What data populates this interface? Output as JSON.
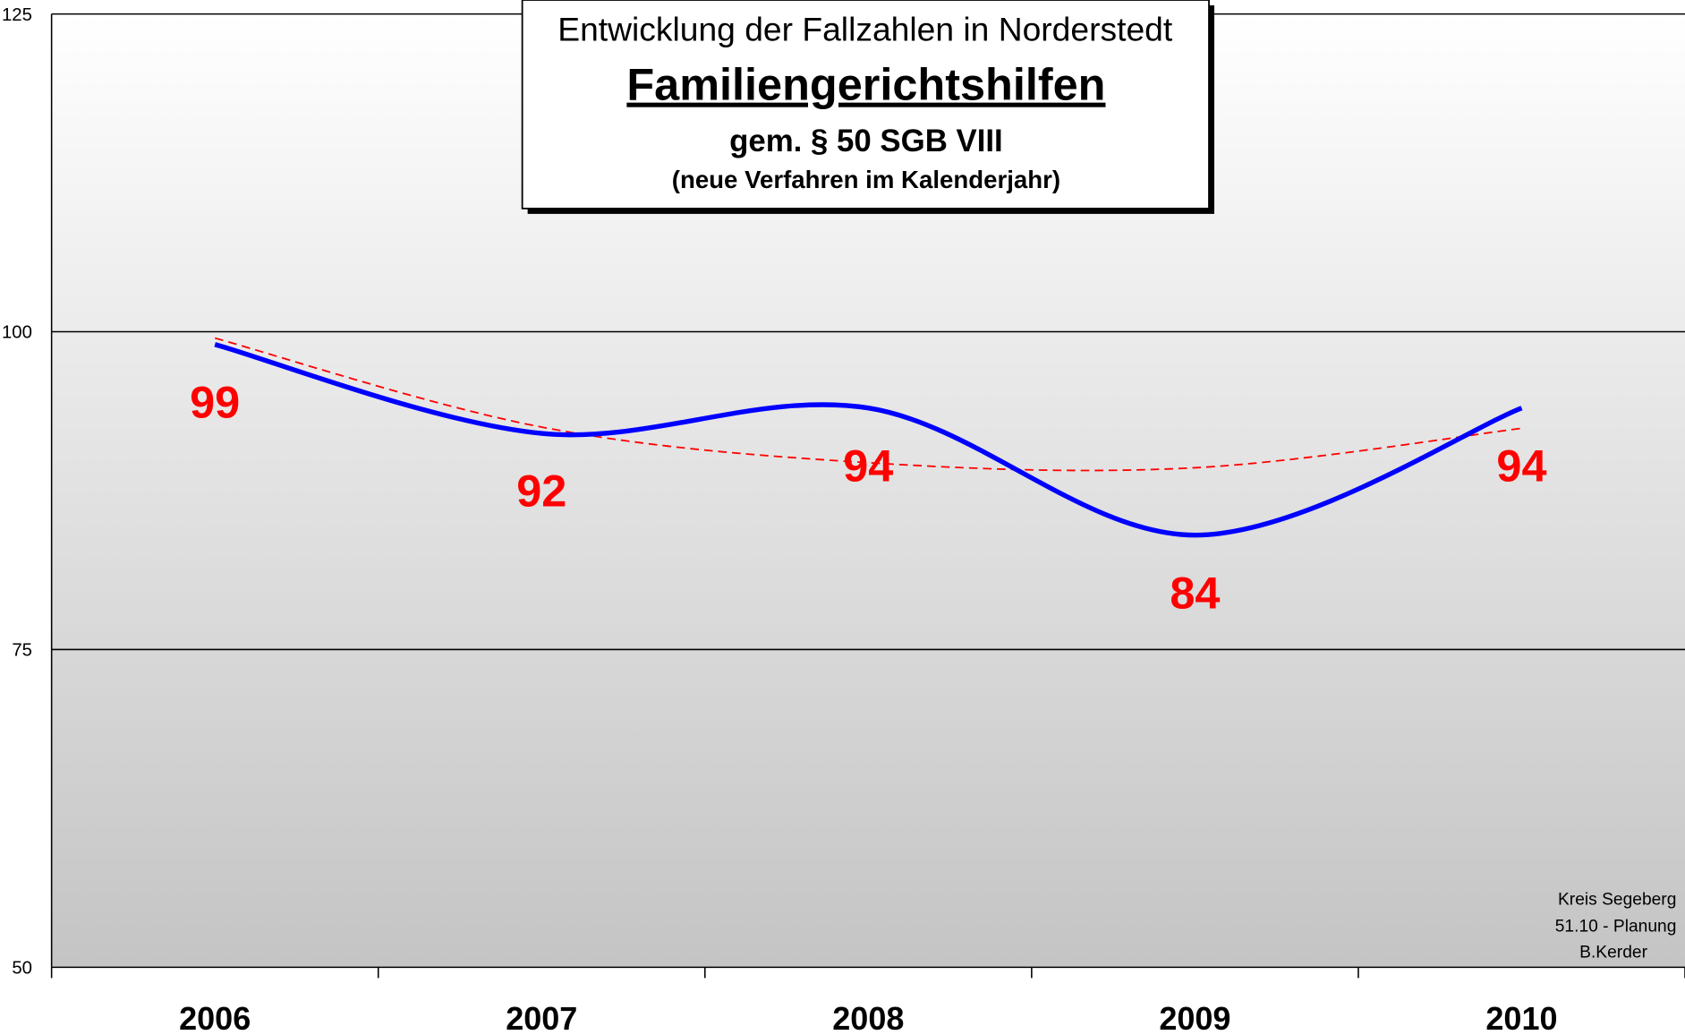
{
  "chart_data": {
    "type": "line",
    "title": "Entwicklung der Fallzahlen in Norderstedt",
    "subtitle": "Familiengerichtshilfen",
    "subtitle_2": "gem. § 50 SGB VIII",
    "subtitle_3": "(neue Verfahren im Kalenderjahr)",
    "annotation": [
      "Kreis Segeberg",
      "51.10 - Planung",
      "B.Kerder"
    ],
    "categories": [
      "2006",
      "2007",
      "2008",
      "2009",
      "2010"
    ],
    "series": [
      {
        "color": "#0000ff",
        "values": [
          99,
          92,
          94,
          84,
          94
        ],
        "smooth": true,
        "data_labels": true,
        "label_color": "#ff0000"
      },
      {
        "color": "#ff0000",
        "values": [
          99.5,
          92.5,
          89.7,
          89.3,
          92.4
        ],
        "smooth": true,
        "dashed": true
      }
    ],
    "ylim": [
      50,
      125
    ],
    "yticks": [
      50,
      75,
      100,
      125
    ],
    "grid": true
  }
}
